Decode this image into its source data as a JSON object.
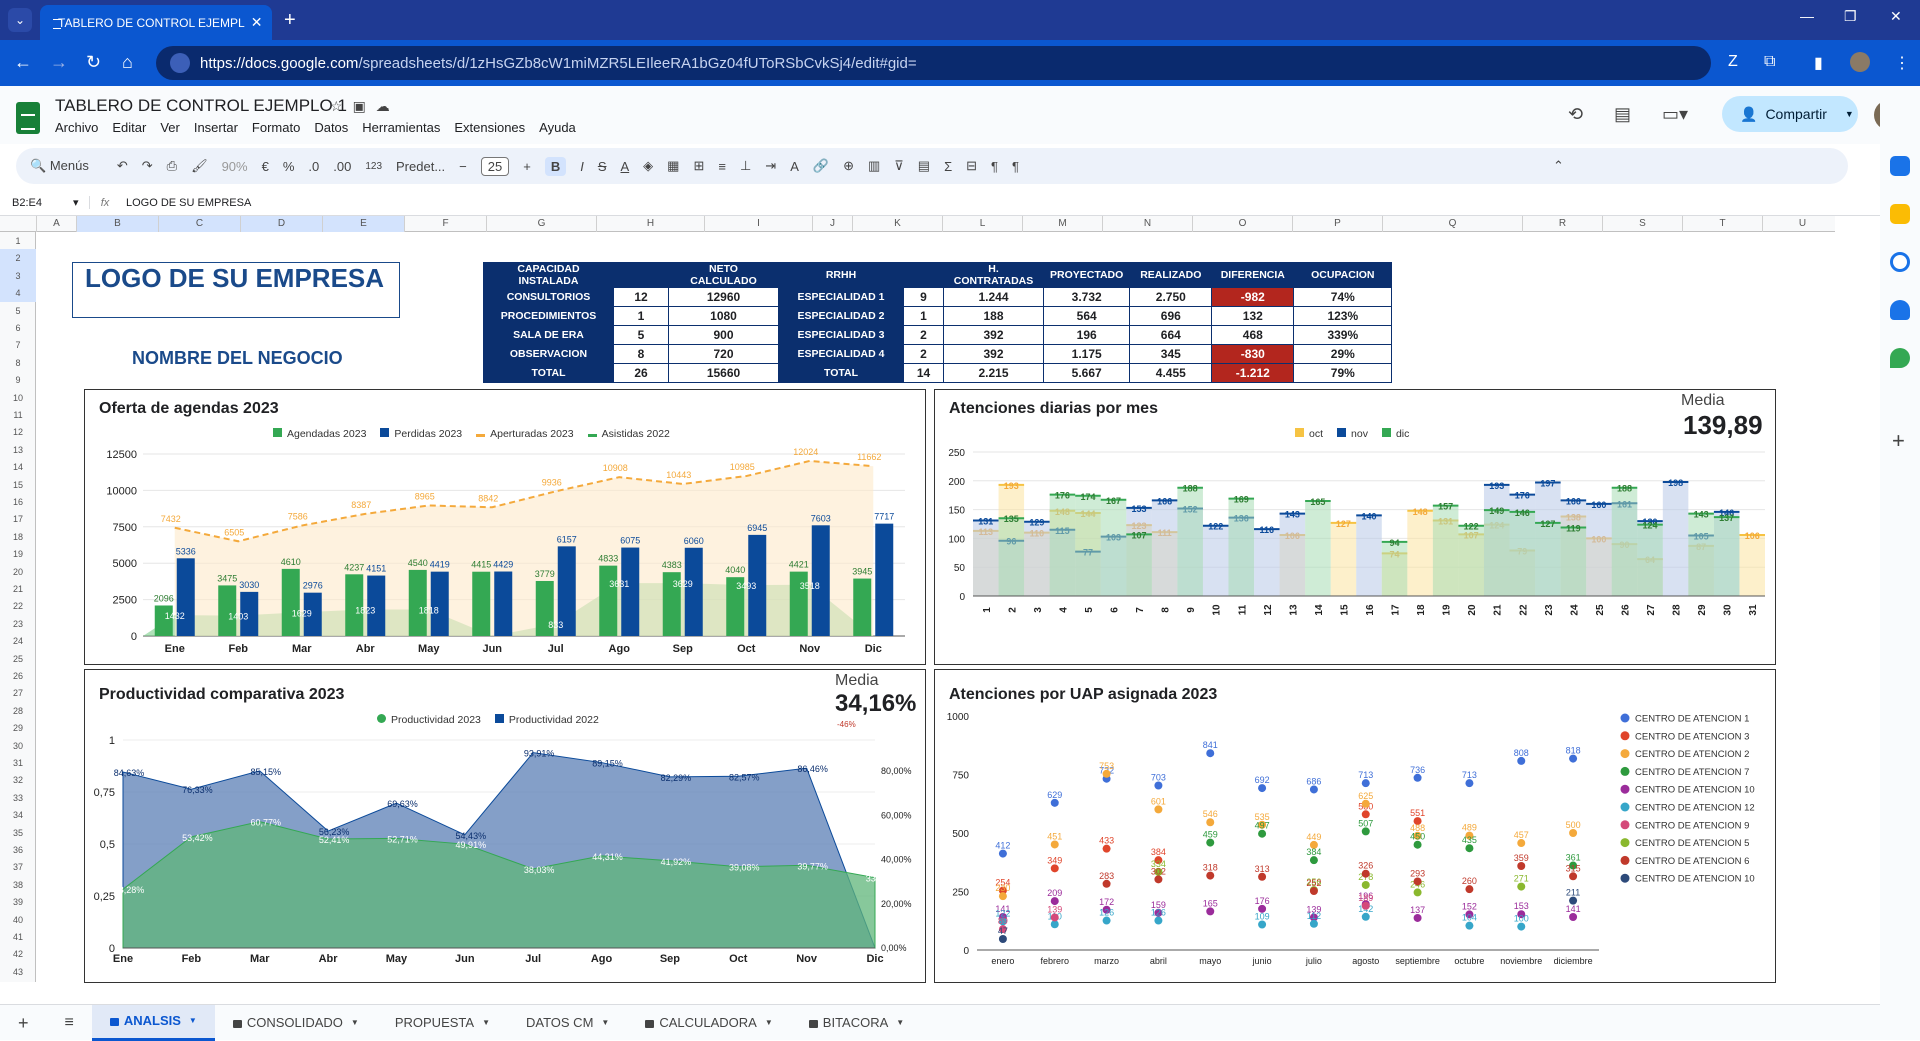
{
  "browser": {
    "tab_title": "TABLERO DE CONTROL EJEMPL",
    "url_host": "https://docs.google.com",
    "url_path": "/spreadsheets/d/1zHsGZb8cW1miMZR5LEIleeRA1bGz04fUToRSbCvkSj4/edit#gid="
  },
  "doc": {
    "title": "TABLERO DE CONTROL EJEMPLO 1",
    "menus": [
      "Archivo",
      "Editar",
      "Ver",
      "Insertar",
      "Formato",
      "Datos",
      "Herramientas",
      "Extensiones",
      "Ayuda"
    ],
    "share_label": "Compartir"
  },
  "toolbar": {
    "search": "Menús",
    "zoom": "90%",
    "currency": "€",
    "percent": "%",
    "dec_less": ".0",
    "dec_more": ".00",
    "num": "123",
    "font": "Predet...",
    "font_size": "25",
    "bold": "B",
    "italic": "I",
    "strike": "S",
    "underline": "A"
  },
  "formula": {
    "cell_ref": "B2:E4",
    "fx": "fx",
    "content": "LOGO DE SU EMPRESA"
  },
  "columns": [
    "A",
    "B",
    "C",
    "D",
    "E",
    "F",
    "G",
    "H",
    "I",
    "J",
    "K",
    "L",
    "M",
    "N",
    "O",
    "P",
    "Q",
    "R",
    "S",
    "T",
    "U"
  ],
  "rows": [
    "1",
    "2",
    "3",
    "4",
    "5",
    "6",
    "7",
    "8",
    "9",
    "10",
    "11",
    "12",
    "13",
    "14",
    "15",
    "16",
    "17",
    "18",
    "19",
    "20",
    "21",
    "22",
    "23",
    "24",
    "25",
    "26",
    "27",
    "28",
    "29",
    "30",
    "31",
    "32",
    "33",
    "34",
    "35",
    "36",
    "37",
    "38",
    "39",
    "40",
    "41",
    "42",
    "43"
  ],
  "company": {
    "logo_text": "LOGO DE SU EMPRESA",
    "business_name": "NOMBRE DEL NEGOCIO"
  },
  "capacity": {
    "headers": [
      "CAPACIDAD INSTALADA",
      "",
      "NETO CALCULADO"
    ],
    "rows": [
      [
        "CONSULTORIOS",
        "12",
        "12960"
      ],
      [
        "PROCEDIMIENTOS",
        "1",
        "1080"
      ],
      [
        "SALA DE ERA",
        "5",
        "900"
      ],
      [
        "OBSERVACION",
        "8",
        "720"
      ],
      [
        "TOTAL",
        "26",
        "15660"
      ]
    ]
  },
  "rrhh": {
    "headers": [
      "RRHH",
      "",
      "H. CONTRATADAS",
      "PROYECTADO",
      "REALIZADO",
      "DIFERENCIA",
      "OCUPACION"
    ],
    "rows": [
      [
        "ESPECIALIDAD 1",
        "9",
        "1.244",
        "3.732",
        "2.750",
        "-982",
        "74%"
      ],
      [
        "ESPECIALIDAD 2",
        "1",
        "188",
        "564",
        "696",
        "132",
        "123%"
      ],
      [
        "ESPECIALIDAD 3",
        "2",
        "392",
        "196",
        "664",
        "468",
        "339%"
      ],
      [
        "ESPECIALIDAD 4",
        "2",
        "392",
        "1.175",
        "345",
        "-830",
        "29%"
      ],
      [
        "TOTAL",
        "14",
        "2.215",
        "5.667",
        "4.455",
        "-1.212",
        "79%"
      ]
    ]
  },
  "sheet_tabs": [
    "ANALSIS",
    "CONSOLIDADO",
    "PROPUESTA",
    "DATOS CM",
    "CALCULADORA",
    "BITACORA"
  ],
  "colors": {
    "green": "#34a853",
    "blue": "#0b4a9a",
    "orange": "#f4a93b",
    "yellow": "#f6c343"
  },
  "chart_data": [
    {
      "type": "bar",
      "title": "Oferta de agendas 2023",
      "categories": [
        "Ene",
        "Feb",
        "Mar",
        "Abr",
        "May",
        "Jun",
        "Jul",
        "Ago",
        "Sep",
        "Oct",
        "Nov",
        "Dic"
      ],
      "ylim": [
        0,
        12500
      ],
      "yticks": [
        "0",
        "2500",
        "5000",
        "7500",
        "10000",
        "12500"
      ],
      "series": [
        {
          "name": "Agendadas 2023",
          "kind": "bar",
          "values": [
            2096,
            3475,
            4610,
            4237,
            4540,
            4415,
            3779,
            4833,
            4383,
            4040,
            4421,
            3945
          ]
        },
        {
          "name": "Perdidas 2023",
          "kind": "bar",
          "values": [
            5336,
            3030,
            2976,
            4151,
            4419,
            4429,
            6157,
            6075,
            6060,
            6945,
            7603,
            7717
          ]
        },
        {
          "name": "Aperturadas 2023",
          "kind": "line",
          "values": [
            7432,
            6505,
            7586,
            8387,
            8965,
            8842,
            9936,
            10908,
            10443,
            10985,
            12024,
            11662
          ]
        },
        {
          "name": "Asistidas 2022",
          "kind": "area",
          "values": [
            1432,
            1403,
            1629,
            1823,
            1818,
            null,
            833,
            3631,
            3629,
            3493,
            3518,
            null
          ]
        }
      ]
    },
    {
      "type": "area",
      "title": "Atenciones diarias por mes",
      "media_label": "Media",
      "media_value": "139,89",
      "ylim": [
        0,
        250
      ],
      "yticks": [
        "0",
        "50",
        "100",
        "150",
        "200",
        "250"
      ],
      "x": [
        "1",
        "2",
        "3",
        "4",
        "5",
        "6",
        "7",
        "8",
        "9",
        "10",
        "11",
        "12",
        "13",
        "14",
        "15",
        "16",
        "17",
        "18",
        "19",
        "20",
        "21",
        "22",
        "23",
        "24",
        "25",
        "26",
        "27",
        "28",
        "29",
        "30",
        "31"
      ],
      "series": [
        {
          "name": "oct",
          "values": [
            113,
            193,
            110,
            148,
            144,
            null,
            123,
            111,
            null,
            null,
            null,
            null,
            106,
            null,
            127,
            null,
            74,
            148,
            131,
            107,
            124,
            79,
            null,
            138,
            100,
            90,
            64,
            null,
            87,
            null,
            106
          ]
        },
        {
          "name": "nov",
          "values": [
            131,
            96,
            129,
            115,
            77,
            103,
            153,
            166,
            152,
            122,
            136,
            116,
            143,
            null,
            null,
            140,
            null,
            null,
            null,
            null,
            193,
            176,
            197,
            166,
            160,
            161,
            130,
            198,
            105,
            146,
            null
          ]
        },
        {
          "name": "dic",
          "values": [
            null,
            135,
            null,
            176,
            174,
            167,
            107,
            null,
            188,
            null,
            169,
            null,
            null,
            165,
            null,
            null,
            94,
            null,
            157,
            122,
            149,
            146,
            127,
            119,
            null,
            188,
            124,
            null,
            143,
            137,
            null
          ]
        }
      ]
    },
    {
      "type": "area",
      "title": "Productividad comparativa 2023",
      "media_label": "Media",
      "media_value": "34,16%",
      "media_sub": "-46%",
      "categories": [
        "Ene",
        "Feb",
        "Mar",
        "Abr",
        "May",
        "Jun",
        "Jul",
        "Ago",
        "Sep",
        "Oct",
        "Nov",
        "Dic"
      ],
      "yticks_left": [
        "0",
        "0,25",
        "0,5",
        "0,75",
        "1"
      ],
      "yticks_right": [
        "0,00%",
        "20,00%",
        "40,00%",
        "60,00%",
        "80,00%"
      ],
      "series": [
        {
          "name": "Productividad 2023",
          "values": [
            28.28,
            53.42,
            60.77,
            52.41,
            52.71,
            49.91,
            38.03,
            44.31,
            41.92,
            39.08,
            39.77,
            33.83
          ]
        },
        {
          "name": "Productividad 2022",
          "values": [
            84.63,
            76.33,
            85.15,
            56.23,
            69.63,
            54.43,
            93.91,
            89.15,
            82.29,
            82.57,
            86.46,
            0
          ]
        }
      ]
    },
    {
      "type": "scatter",
      "title": "Atenciones por UAP asignada 2023",
      "categories": [
        "enero",
        "febrero",
        "marzo",
        "abril",
        "mayo",
        "junio",
        "julio",
        "agosto",
        "septiembre",
        "octubre",
        "noviembre",
        "diciembre"
      ],
      "ylim": [
        0,
        1000
      ],
      "yticks": [
        "0",
        "250",
        "500",
        "750",
        "1000"
      ],
      "series": [
        {
          "name": "CENTRO DE ATENCION 1",
          "color": "#3f6fd8",
          "values": [
            412,
            629,
            732,
            703,
            841,
            692,
            686,
            713,
            736,
            713,
            808,
            818
          ]
        },
        {
          "name": "CENTRO DE ATENCION 3",
          "color": "#e0452b",
          "values": [
            254,
            349,
            433,
            384,
            null,
            null,
            null,
            580,
            551,
            null,
            null,
            null
          ]
        },
        {
          "name": "CENTRO DE ATENCION 2",
          "color": "#f4a93b",
          "values": [
            230,
            451,
            753,
            601,
            546,
            535,
            449,
            625,
            488,
            489,
            457,
            500
          ]
        },
        {
          "name": "CENTRO DE ATENCION 7",
          "color": "#2e9a3e",
          "values": [
            null,
            null,
            null,
            null,
            459,
            497,
            384,
            507,
            450,
            435,
            null,
            361
          ]
        },
        {
          "name": "CENTRO DE ATENCION 10",
          "color": "#9b2c9b",
          "values": [
            141,
            209,
            172,
            159,
            165,
            176,
            139,
            196,
            137,
            152,
            153,
            141
          ]
        },
        {
          "name": "CENTRO DE ATENCION 12",
          "color": "#36a6c9",
          "values": [
            122,
            110,
            126,
            126,
            null,
            109,
            112,
            142,
            null,
            104,
            100,
            null
          ]
        },
        {
          "name": "CENTRO DE ATENCION 9",
          "color": "#d44a7a",
          "values": [
            89,
            139,
            null,
            null,
            null,
            null,
            null,
            189,
            null,
            null,
            null,
            null
          ]
        },
        {
          "name": "CENTRO DE ATENCION 5",
          "color": "#8ab82e",
          "values": [
            null,
            null,
            null,
            334,
            null,
            null,
            256,
            278,
            246,
            null,
            271,
            null
          ]
        },
        {
          "name": "CENTRO DE ATENCION 6",
          "color": "#c0392b",
          "values": [
            null,
            null,
            283,
            302,
            318,
            313,
            252,
            326,
            293,
            260,
            359,
            315
          ]
        },
        {
          "name": "CENTRO DE ATENCION 10",
          "color": "#2d4a7a",
          "values": [
            47,
            null,
            null,
            null,
            null,
            null,
            null,
            null,
            null,
            null,
            null,
            211
          ]
        }
      ]
    }
  ]
}
